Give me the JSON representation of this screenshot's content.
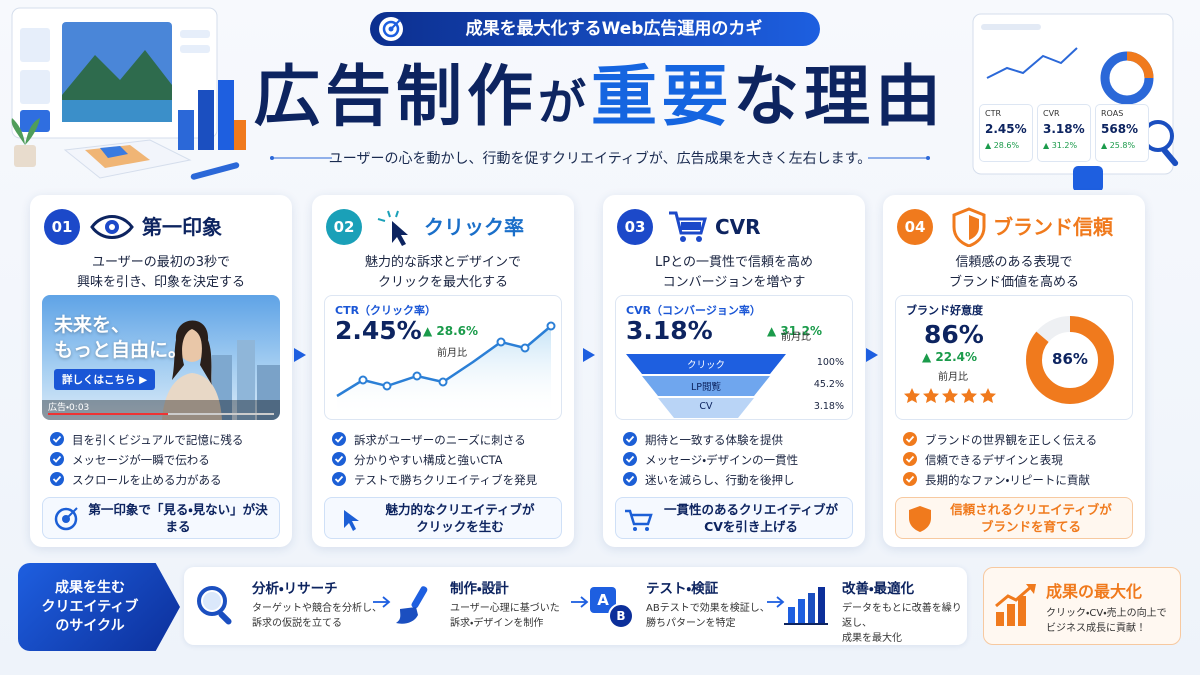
{
  "header": {
    "badge": "成果を最大化するWeb広告運用のカギ",
    "title": [
      "広告制作",
      "が",
      "重要",
      "な理由"
    ],
    "subtitle": "ユーザーの心を動かし、行動を促すクリエイティブが、広告成果を大きく左右します。"
  },
  "dashboard": {
    "metrics": [
      {
        "label": "CTR",
        "value": "2.45%",
        "change": "▲ 28.6%"
      },
      {
        "label": "CVR",
        "value": "3.18%",
        "change": "▲ 31.2%"
      },
      {
        "label": "ROAS",
        "value": "568%",
        "change": "▲ 25.8%"
      }
    ]
  },
  "cards": [
    {
      "number": "01",
      "title": "第一印象",
      "description": "ユーザーの最初の3秒で\n興味を引き、印象を決定する",
      "panel": {
        "headline": "未来を、\nもっと自由に。",
        "button": "詳しくはこちら ▶",
        "caption": "広告・0:03"
      },
      "points": [
        "目を引くビジュアルで記憶に残る",
        "メッセージが一瞬で伝わる",
        "スクロールを止める力がある"
      ],
      "footer": "第一印象で「見る・見ない」が決まる"
    },
    {
      "number": "02",
      "title": "クリック率",
      "description": "魅力的な訴求とデザインで\nクリックを最大化する",
      "panel": {
        "label": "CTR（クリック率）",
        "value": "2.45%",
        "change": "▲ 28.6%",
        "compare": "前月比"
      },
      "points": [
        "訴求がユーザーのニーズに刺さる",
        "分かりやすい構成と強いCTA",
        "テストで勝ちクリエイティブを発見"
      ],
      "footer": "魅力的なクリエイティブが\nクリックを生む"
    },
    {
      "number": "03",
      "title": "CVR",
      "description": "LPとの一貫性で信頼を高め\nコンバージョンを増やす",
      "panel": {
        "label": "CVR（コンバージョン率）",
        "value": "3.18%",
        "change": "▲ 31.2%",
        "compare": "前月比",
        "funnel": [
          {
            "stage": "クリック",
            "value": "100%"
          },
          {
            "stage": "LP閲覧",
            "value": "45.2%"
          },
          {
            "stage": "CV",
            "value": "3.18%"
          }
        ]
      },
      "points": [
        "期待と一致する体験を提供",
        "メッセージ・デザインの一貫性",
        "迷いを減らし、行動を後押し"
      ],
      "footer": "一貫性のあるクリエイティブが\nCVを引き上げる"
    },
    {
      "number": "04",
      "title": "ブランド信頼",
      "description": "信頼感のある表現で\nブランド価値を高める",
      "panel": {
        "label": "ブランド好意度",
        "value": "86%",
        "change": "▲ 22.4%",
        "compare": "前月比",
        "donut": {
          "value": 86,
          "label": "86%"
        }
      },
      "points": [
        "ブランドの世界観を正しく伝える",
        "信頼できるデザインと表現",
        "長期的なファン・リピートに貢献"
      ],
      "footer": "信頼されるクリエイティブが\nブランドを育てる"
    }
  ],
  "cycle": {
    "label": "成果を生む\nクリエイティブ\nのサイクル",
    "steps": [
      {
        "title": "分析・リサーチ",
        "description": "ターゲットや競合を分析し、\n訴求の仮説を立てる"
      },
      {
        "title": "制作・設計",
        "description": "ユーザー心理に基づいた\n訴求・デザインを制作"
      },
      {
        "title": "テスト・検証",
        "description": "ABテストで効果を検証し、\n勝ちパターンを特定",
        "icon_text": [
          "A",
          "B"
        ]
      },
      {
        "title": "改善・最適化",
        "description": "データをもとに改善を繰り返し、\n成果を最大化"
      }
    ],
    "result": {
      "title": "成果の最大化",
      "description": "クリック・CV・売上の向上で\nビジネス成長に貢献！"
    }
  }
}
